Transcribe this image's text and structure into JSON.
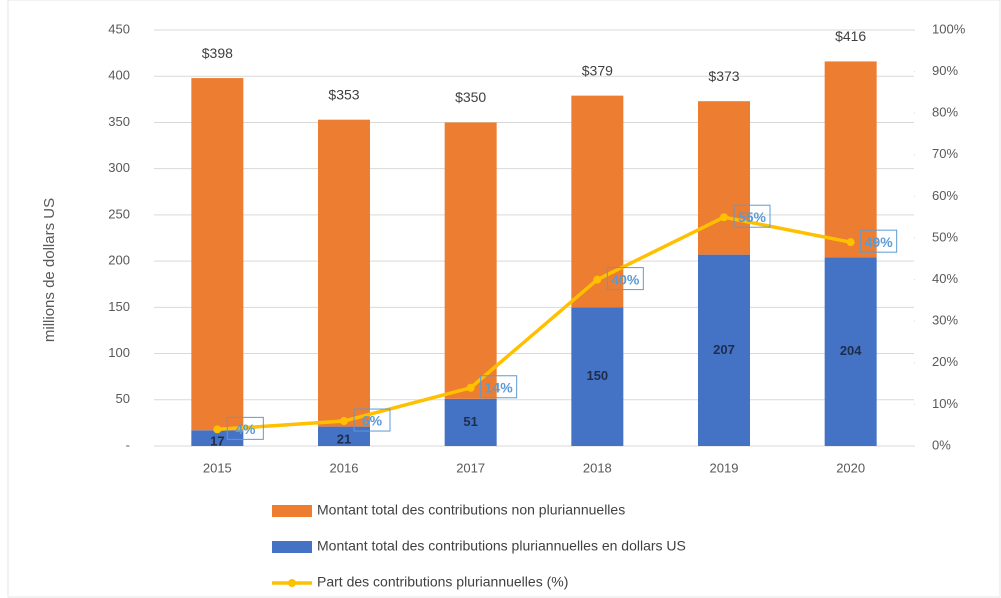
{
  "chart_data": {
    "type": "bar_line",
    "y_label": "millions de dollars US",
    "categories": [
      "2015",
      "2016",
      "2017",
      "2018",
      "2019",
      "2020"
    ],
    "series": [
      {
        "name": "Montant total des contributions pluriannuelles en dollars US",
        "color": "#4472c4",
        "values": [
          17,
          21,
          51,
          150,
          207,
          204
        ]
      },
      {
        "name": "Montant total des contributions non pluriannuelles",
        "color": "#ed7d31",
        "values": [
          381,
          332,
          299,
          229,
          166,
          212
        ]
      },
      {
        "name": "Part des contributions pluriannuelles (%)",
        "color": "#ffc000",
        "axis": "y2",
        "values": [
          4,
          6,
          14,
          40,
          55,
          49
        ],
        "value_labels": [
          "4%",
          "6%",
          "14%",
          "40%",
          "55%",
          "49%"
        ]
      }
    ],
    "total_labels": [
      "$398",
      "$353",
      "$350",
      "$379",
      "$373",
      "$416"
    ],
    "legend_order": [
      1,
      0,
      2
    ],
    "ylim": [
      0,
      450
    ],
    "yticks": [
      {
        "value": 0,
        "label": "-"
      },
      50,
      100,
      150,
      200,
      250,
      300,
      350,
      400,
      450
    ],
    "y2lim": [
      0,
      100
    ],
    "y2ticks": [
      {
        "value": 0,
        "label": "0%"
      },
      {
        "value": 10,
        "label": "10%"
      },
      {
        "value": 20,
        "label": "20%"
      },
      {
        "value": 30,
        "label": "30%"
      },
      {
        "value": 40,
        "label": "40%"
      },
      {
        "value": 50,
        "label": "50%"
      },
      {
        "value": 60,
        "label": "60%"
      },
      {
        "value": 70,
        "label": "70%"
      },
      {
        "value": 80,
        "label": "80%"
      },
      {
        "value": 90,
        "label": "90%"
      },
      {
        "value": 100,
        "label": "100%"
      }
    ],
    "grid": true
  }
}
